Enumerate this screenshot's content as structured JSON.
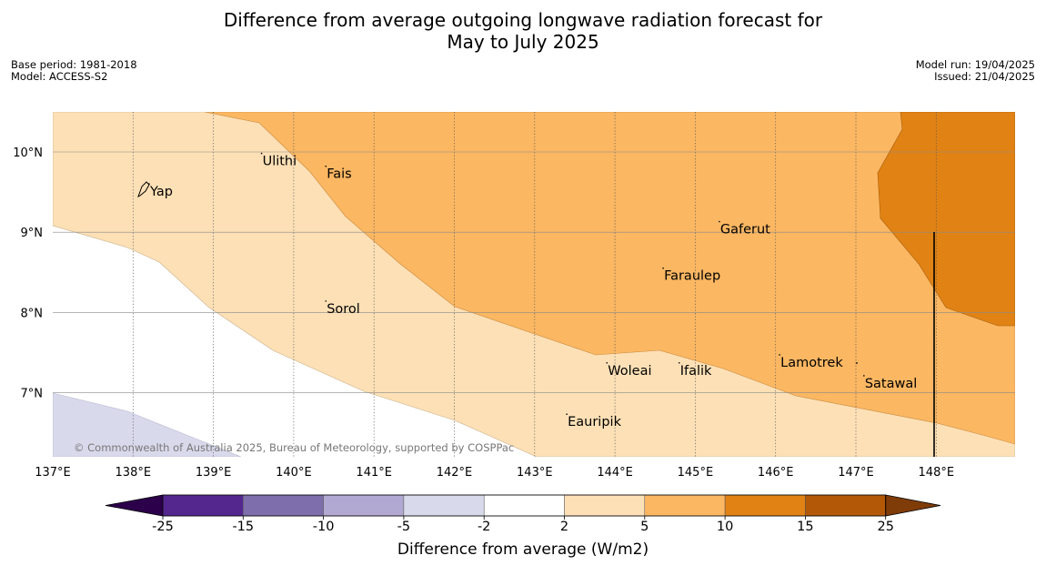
{
  "title": {
    "line1": "Difference from average outgoing longwave radiation forecast for",
    "line2": "May to July 2025"
  },
  "meta_left": {
    "base_period": "Base period: 1981-2018",
    "model": "Model: ACCESS-S2"
  },
  "meta_right": {
    "model_run": "Model run: 19/04/2025",
    "issued": "Issued: 21/04/2025"
  },
  "copyright": "© Commonwealth of Australia 2025, Bureau of Meteorology, supported by COSPPac",
  "map": {
    "lon_range": [
      137,
      149
    ],
    "lat_range": [
      6.2,
      10.5
    ],
    "lon_ticks": [
      "137°E",
      "138°E",
      "139°E",
      "140°E",
      "141°E",
      "142°E",
      "143°E",
      "144°E",
      "145°E",
      "146°E",
      "147°E",
      "148°E"
    ],
    "lat_ticks": [
      "10°N",
      "9°N",
      "8°N",
      "7°N"
    ],
    "places": [
      {
        "name": "Yap",
        "lon": 138.2,
        "lat": 9.5
      },
      {
        "name": "Ulithi",
        "lon": 139.6,
        "lat": 9.88
      },
      {
        "name": "Fais",
        "lon": 140.4,
        "lat": 9.72
      },
      {
        "name": "Gaferut",
        "lon": 145.3,
        "lat": 9.03
      },
      {
        "name": "Faraulep",
        "lon": 144.6,
        "lat": 8.45
      },
      {
        "name": "Sorol",
        "lon": 140.4,
        "lat": 8.04
      },
      {
        "name": "Lamotrek",
        "lon": 146.05,
        "lat": 7.37
      },
      {
        "name": "Satawal",
        "lon": 147.1,
        "lat": 7.11
      },
      {
        "name": "Woleai",
        "lon": 143.9,
        "lat": 7.27
      },
      {
        "name": "Ifalik",
        "lon": 144.8,
        "lat": 7.27
      },
      {
        "name": "Eauripik",
        "lon": 143.4,
        "lat": 6.63
      }
    ],
    "boundary_lon": 148
  },
  "colorbar": {
    "labels": [
      "-25",
      "-15",
      "-10",
      "-5",
      "-2",
      "2",
      "5",
      "10",
      "15",
      "25"
    ],
    "colors": [
      "#54278f",
      "#7e6eab",
      "#b2a9d3",
      "#d9d9ec",
      "#ffffff",
      "#fde0b6",
      "#fbb762",
      "#e08214",
      "#b35806"
    ],
    "under_color": "#2d004b",
    "over_color": "#7f3b08",
    "title": "Difference from average (W/m2)"
  }
}
